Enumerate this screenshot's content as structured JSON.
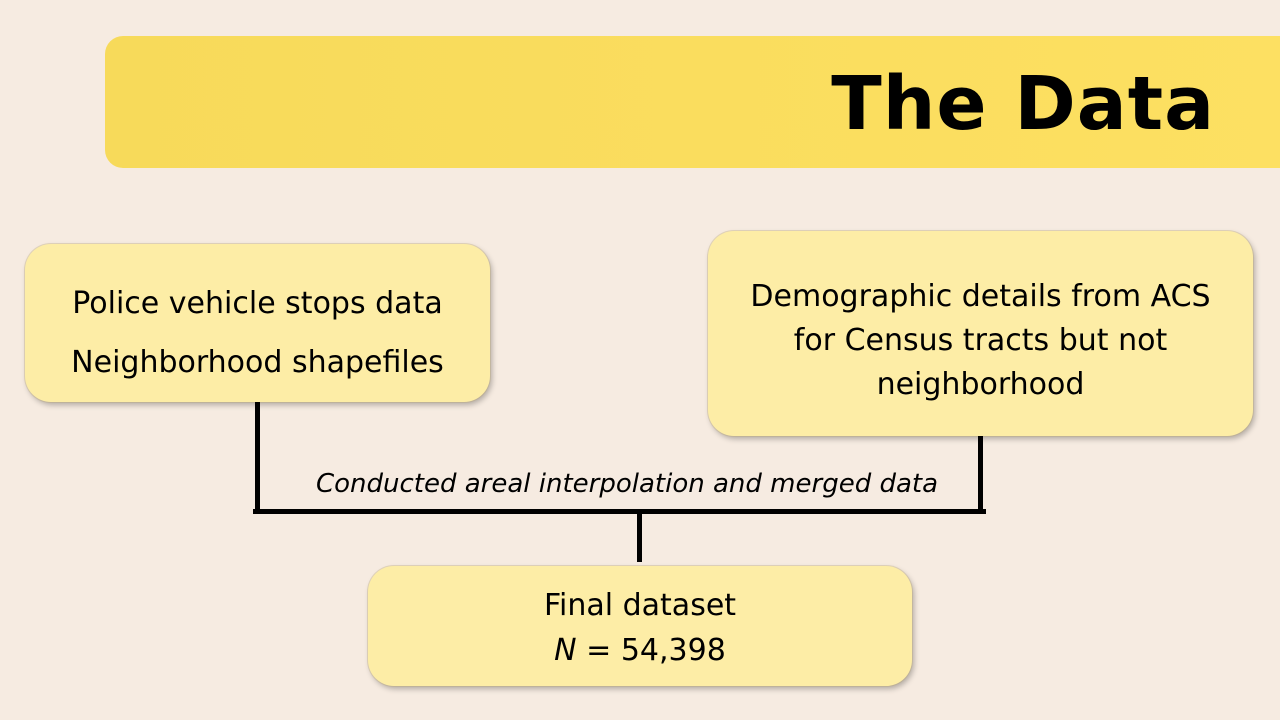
{
  "title": "The Data",
  "left_box": {
    "line1": "Police vehicle stops data",
    "line2": "Neighborhood shapefiles"
  },
  "right_box": {
    "line1": "Demographic details from ACS",
    "line2": "for Census tracts but not",
    "line3": "neighborhood"
  },
  "connector_caption": "Conducted areal interpolation and merged data",
  "bottom_box": {
    "line1": "Final dataset",
    "n_label": "N",
    "n_value": "= 54,398"
  },
  "colors": {
    "background": "#f6ebe1",
    "title_bar": "#fde062",
    "box_fill": "#fdeda6",
    "connector": "#000000"
  }
}
